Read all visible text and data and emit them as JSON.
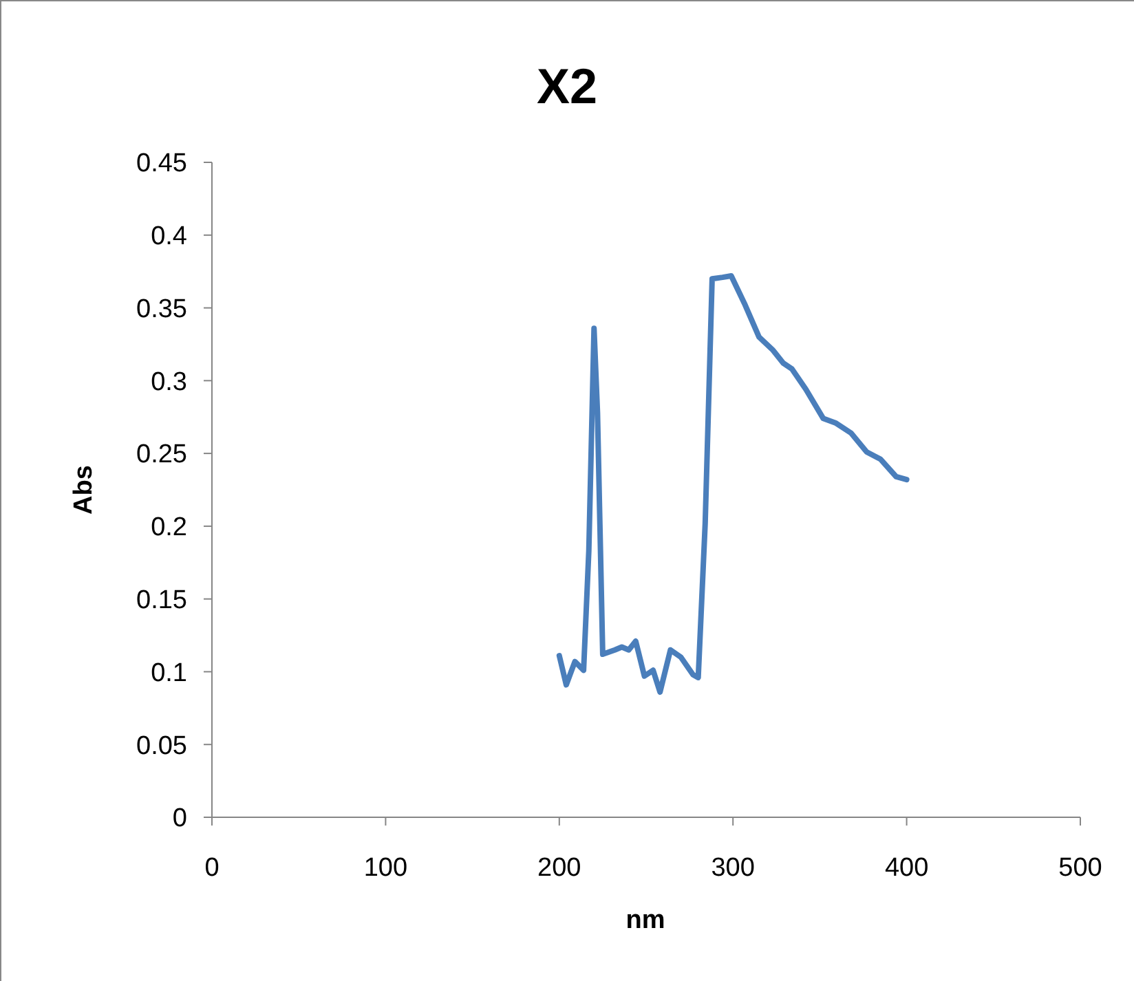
{
  "chart_data": {
    "type": "line",
    "title": "X2",
    "xlabel": "nm",
    "ylabel": "Abs",
    "xlim": [
      0,
      500
    ],
    "xticks": [
      0,
      100,
      200,
      300,
      400,
      500
    ],
    "ylim": [
      0,
      0.45
    ],
    "yticks": [
      {
        "value": 0,
        "label": "0"
      },
      {
        "value": 0.05,
        "label": "0.05"
      },
      {
        "value": 0.1,
        "label": "0.1"
      },
      {
        "value": 0.15,
        "label": "0.15"
      },
      {
        "value": 0.2,
        "label": "0.2"
      },
      {
        "value": 0.25,
        "label": "0.25"
      },
      {
        "value": 0.3,
        "label": "0.3"
      },
      {
        "value": 0.35,
        "label": "0.35"
      },
      {
        "value": 0.4,
        "label": "0.4"
      },
      {
        "value": 0.45,
        "label": "0.45"
      }
    ],
    "marker": "none",
    "line_style": "solid",
    "series": [
      {
        "color": "#4a7ebb",
        "x": [
          200,
          204,
          209,
          214,
          217,
          220,
          222,
          225,
          232,
          236,
          240,
          244,
          249,
          254,
          258,
          264,
          270,
          277,
          280,
          284,
          288,
          294,
          299,
          307,
          315,
          323,
          329,
          334,
          342,
          352,
          359,
          368,
          377,
          385,
          394,
          400
        ],
        "values": [
          0.111,
          0.091,
          0.107,
          0.101,
          0.183,
          0.336,
          0.278,
          0.112,
          0.115,
          0.117,
          0.115,
          0.121,
          0.097,
          0.101,
          0.086,
          0.115,
          0.11,
          0.098,
          0.096,
          0.202,
          0.37,
          0.371,
          0.372,
          0.352,
          0.33,
          0.321,
          0.312,
          0.308,
          0.294,
          0.274,
          0.271,
          0.264,
          0.251,
          0.246,
          0.234,
          0.232
        ]
      }
    ]
  }
}
